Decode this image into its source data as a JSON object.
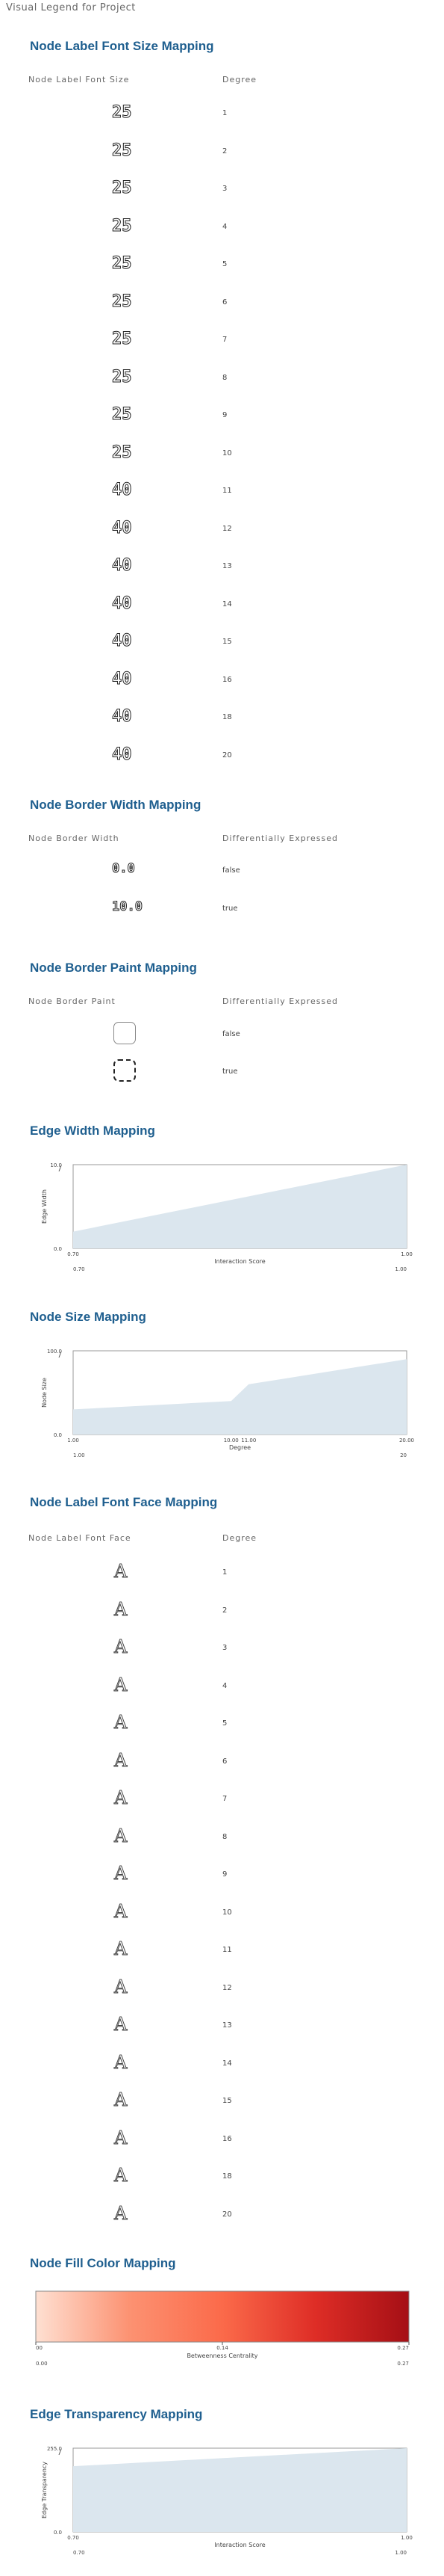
{
  "page": {
    "title": "Visual Legend for Project"
  },
  "font_size": {
    "title": "Node Label Font Size Mapping",
    "col1": "Node Label Font Size",
    "col2": "Degree",
    "rows": [
      {
        "size": "25",
        "value": "1"
      },
      {
        "size": "25",
        "value": "2"
      },
      {
        "size": "25",
        "value": "3"
      },
      {
        "size": "25",
        "value": "4"
      },
      {
        "size": "25",
        "value": "5"
      },
      {
        "size": "25",
        "value": "6"
      },
      {
        "size": "25",
        "value": "7"
      },
      {
        "size": "25",
        "value": "8"
      },
      {
        "size": "25",
        "value": "9"
      },
      {
        "size": "25",
        "value": "10"
      },
      {
        "size": "40",
        "value": "11"
      },
      {
        "size": "40",
        "value": "12"
      },
      {
        "size": "40",
        "value": "13"
      },
      {
        "size": "40",
        "value": "14"
      },
      {
        "size": "40",
        "value": "15"
      },
      {
        "size": "40",
        "value": "16"
      },
      {
        "size": "40",
        "value": "18"
      },
      {
        "size": "40",
        "value": "20"
      }
    ]
  },
  "border_width": {
    "title": "Node Border Width Mapping",
    "col1": "Node Border Width",
    "col2": "Differentially Expressed",
    "rows": [
      {
        "width": "0.0",
        "value": "false"
      },
      {
        "width": "10.0",
        "value": "true"
      }
    ]
  },
  "border_paint": {
    "title": "Node Border Paint Mapping",
    "col1": "Node Border Paint",
    "col2": "Differentially Expressed",
    "rows": [
      {
        "value": "false",
        "style": "solid",
        "color": "#888888"
      },
      {
        "value": "true",
        "style": "dashed",
        "color": "#222222"
      }
    ]
  },
  "edge_width": {
    "title": "Edge Width Mapping",
    "chart_data": {
      "type": "area",
      "x": [
        0.7,
        1.0
      ],
      "y": [
        2.0,
        10.0
      ],
      "xlabel": "Interaction Score",
      "ylabel": "Edge Width",
      "xlim": [
        0.7,
        1.0
      ],
      "ylim": [
        0.0,
        10.0
      ],
      "y_ticks": [
        "0.0",
        "10.0"
      ],
      "x_ticks": [
        "0.70",
        "1.00"
      ],
      "x_edge_labels": [
        "0.70",
        "1.00"
      ]
    }
  },
  "node_size": {
    "title": "Node Size Mapping",
    "chart_data": {
      "type": "area",
      "x": [
        1,
        10,
        11,
        20
      ],
      "y": [
        30,
        40,
        60,
        90
      ],
      "xlabel": "Degree",
      "ylabel": "Node Size",
      "xlim": [
        1,
        20
      ],
      "ylim": [
        0,
        100
      ],
      "y_ticks": [
        "0.0",
        "100.0"
      ],
      "x_ticks": [
        "1.00",
        "10.00",
        "11.00",
        "20.00"
      ],
      "x_edge_labels": [
        "1.00",
        "20"
      ]
    }
  },
  "font_face": {
    "title": "Node Label Font Face Mapping",
    "col1": "Node Label Font Face",
    "col2": "Degree",
    "glyph": "A",
    "rows": [
      {
        "value": "1"
      },
      {
        "value": "2"
      },
      {
        "value": "3"
      },
      {
        "value": "4"
      },
      {
        "value": "5"
      },
      {
        "value": "6"
      },
      {
        "value": "7"
      },
      {
        "value": "8"
      },
      {
        "value": "9"
      },
      {
        "value": "10"
      },
      {
        "value": "11"
      },
      {
        "value": "12"
      },
      {
        "value": "13"
      },
      {
        "value": "14"
      },
      {
        "value": "15"
      },
      {
        "value": "16"
      },
      {
        "value": "18"
      },
      {
        "value": "20"
      }
    ]
  },
  "fill_color": {
    "title": "Node Fill Color Mapping",
    "colors": [
      "#fee0d2",
      "#fc9272",
      "#fb6a4a",
      "#de2d26",
      "#a50f15"
    ],
    "ticks": [
      "00",
      "0.14",
      "0.27"
    ],
    "xlabel": "Betweenness Centrality",
    "min_label": "0.00",
    "max_label": "0.27"
  },
  "edge_transparency": {
    "title": "Edge Transparency Mapping",
    "chart_data": {
      "type": "area",
      "x": [
        0.7,
        1.0
      ],
      "y": [
        200,
        255
      ],
      "xlabel": "Interaction Score",
      "ylabel": "Edge Transparency",
      "xlim": [
        0.7,
        1.0
      ],
      "ylim": [
        0,
        255
      ],
      "y_ticks": [
        "0.0",
        "255.0"
      ],
      "x_ticks": [
        "0.70",
        "1.00"
      ],
      "x_edge_labels": [
        "0.70",
        "1.00"
      ]
    }
  }
}
